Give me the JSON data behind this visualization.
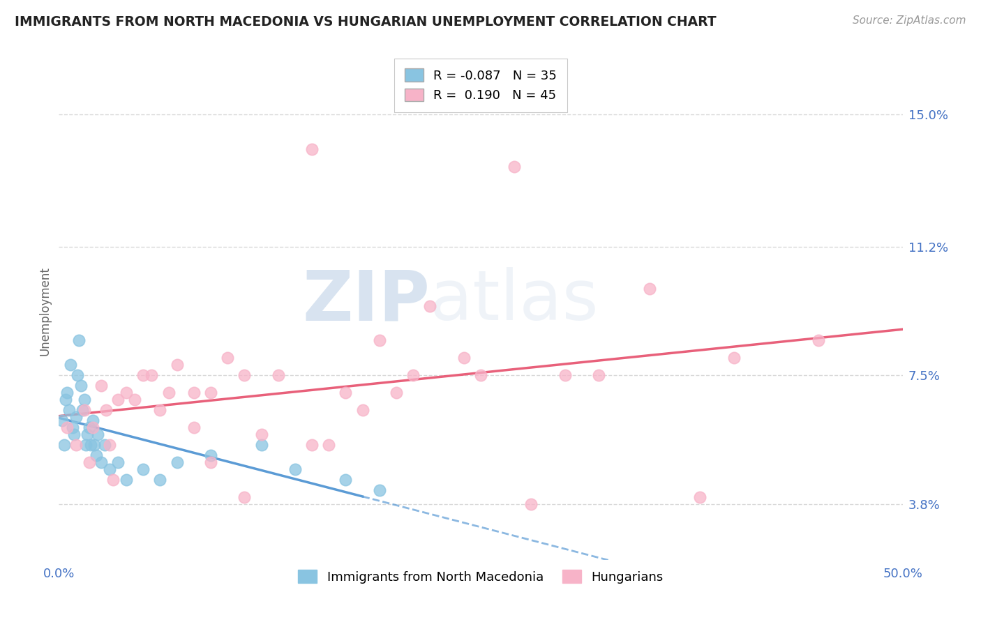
{
  "title": "IMMIGRANTS FROM NORTH MACEDONIA VS HUNGARIAN UNEMPLOYMENT CORRELATION CHART",
  "source_text": "Source: ZipAtlas.com",
  "ylabel": "Unemployment",
  "xlim": [
    0.0,
    50.0
  ],
  "ylim": [
    2.2,
    16.5
  ],
  "yticks": [
    3.8,
    7.5,
    11.2,
    15.0
  ],
  "xtick_labels": [
    "0.0%",
    "50.0%"
  ],
  "ytick_labels": [
    "3.8%",
    "7.5%",
    "11.2%",
    "15.0%"
  ],
  "grid_color": "#d0d0d0",
  "background_color": "#ffffff",
  "blue_color": "#89c4e1",
  "pink_color": "#f7b3c8",
  "blue_line_color": "#5b9bd5",
  "pink_line_color": "#e8607a",
  "legend_R1": "-0.087",
  "legend_N1": "35",
  "legend_R2": "0.190",
  "legend_N2": "45",
  "watermark_zip": "ZIP",
  "watermark_atlas": "atlas",
  "blue_scatter_x": [
    0.2,
    0.3,
    0.4,
    0.5,
    0.6,
    0.7,
    0.8,
    0.9,
    1.0,
    1.1,
    1.2,
    1.3,
    1.4,
    1.5,
    1.6,
    1.7,
    1.8,
    1.9,
    2.0,
    2.1,
    2.2,
    2.3,
    2.5,
    2.7,
    3.0,
    3.5,
    4.0,
    5.0,
    6.0,
    7.0,
    9.0,
    12.0,
    14.0,
    17.0,
    19.0
  ],
  "blue_scatter_y": [
    6.2,
    5.5,
    6.8,
    7.0,
    6.5,
    7.8,
    6.0,
    5.8,
    6.3,
    7.5,
    8.5,
    7.2,
    6.5,
    6.8,
    5.5,
    5.8,
    6.0,
    5.5,
    6.2,
    5.5,
    5.2,
    5.8,
    5.0,
    5.5,
    4.8,
    5.0,
    4.5,
    4.8,
    4.5,
    5.0,
    5.2,
    5.5,
    4.8,
    4.5,
    4.2
  ],
  "pink_scatter_x": [
    0.5,
    1.0,
    1.5,
    2.0,
    2.5,
    3.0,
    3.5,
    4.0,
    5.0,
    6.0,
    7.0,
    8.0,
    9.0,
    10.0,
    11.0,
    13.0,
    15.0,
    17.0,
    19.0,
    21.0,
    24.0,
    27.0,
    30.0,
    35.0,
    40.0,
    45.0,
    2.8,
    4.5,
    6.5,
    9.0,
    12.0,
    16.0,
    20.0,
    25.0,
    32.0,
    38.0,
    1.8,
    3.2,
    5.5,
    8.0,
    11.0,
    15.0,
    18.0,
    22.0,
    28.0
  ],
  "pink_scatter_y": [
    6.0,
    5.5,
    6.5,
    6.0,
    7.2,
    5.5,
    6.8,
    7.0,
    7.5,
    6.5,
    7.8,
    6.0,
    7.0,
    8.0,
    7.5,
    7.5,
    14.0,
    7.0,
    8.5,
    7.5,
    8.0,
    13.5,
    7.5,
    10.0,
    8.0,
    8.5,
    6.5,
    6.8,
    7.0,
    5.0,
    5.8,
    5.5,
    7.0,
    7.5,
    7.5,
    4.0,
    5.0,
    4.5,
    7.5,
    7.0,
    4.0,
    5.5,
    6.5,
    9.5,
    3.8
  ],
  "blue_xmax_solid": 18.0
}
